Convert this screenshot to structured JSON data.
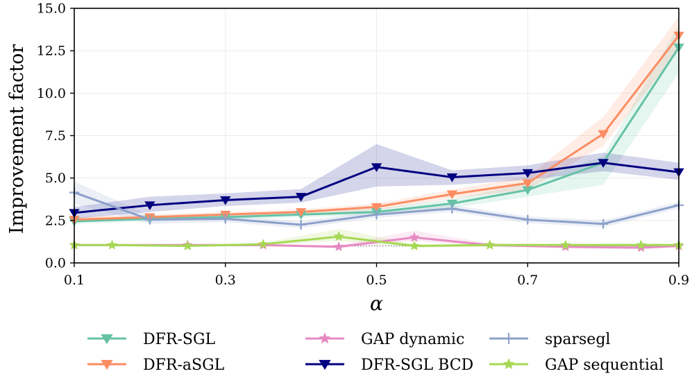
{
  "chart_data": {
    "type": "line",
    "title": "",
    "xlabel": "α",
    "ylabel": "Improvement factor",
    "xlim": [
      0.1,
      0.9
    ],
    "ylim": [
      0.0,
      15.0
    ],
    "xticks": [
      0.1,
      0.3,
      0.5,
      0.7,
      0.9
    ],
    "xtick_labels": [
      "0.1",
      "0.3",
      "0.5",
      "0.7",
      "0.9"
    ],
    "yticks": [
      0.0,
      2.5,
      5.0,
      7.5,
      10.0,
      12.5,
      15.0
    ],
    "ytick_labels": [
      "0.0",
      "2.5",
      "5.0",
      "7.5",
      "10.0",
      "12.5",
      "15.0"
    ],
    "grid": true,
    "reference_line": 1.0,
    "legend_position": "below plot, three columns",
    "series": [
      {
        "name": "DFR-SGL",
        "color": "#66c2a5",
        "marker": "triangle-down",
        "x": [
          0.1,
          0.2,
          0.3,
          0.4,
          0.5,
          0.6,
          0.7,
          0.8,
          0.9
        ],
        "values": [
          2.45,
          2.6,
          2.7,
          2.85,
          3.0,
          3.5,
          4.3,
          5.9,
          12.7
        ],
        "lower": [
          2.3,
          2.45,
          2.55,
          2.7,
          2.8,
          3.25,
          3.9,
          4.6,
          11.2
        ],
        "upper": [
          2.6,
          2.75,
          2.85,
          3.0,
          3.2,
          3.75,
          4.7,
          6.3,
          14.0
        ]
      },
      {
        "name": "DFR-aSGL",
        "color": "#fc8d62",
        "marker": "triangle-down",
        "x": [
          0.1,
          0.2,
          0.3,
          0.4,
          0.5,
          0.6,
          0.7,
          0.8,
          0.9
        ],
        "values": [
          2.55,
          2.7,
          2.85,
          3.0,
          3.3,
          4.05,
          4.7,
          7.6,
          13.4
        ],
        "lower": [
          2.4,
          2.55,
          2.7,
          2.85,
          3.1,
          3.8,
          4.3,
          6.9,
          12.5
        ],
        "upper": [
          2.7,
          2.85,
          3.0,
          3.15,
          3.5,
          4.3,
          5.1,
          8.6,
          14.5
        ]
      },
      {
        "name": "GAP dynamic",
        "color": "#e78ac3",
        "marker": "star",
        "x": [
          0.1,
          0.25,
          0.35,
          0.45,
          0.55,
          0.65,
          0.75,
          0.85,
          0.9
        ],
        "values": [
          1.05,
          1.05,
          1.05,
          0.95,
          1.5,
          1.05,
          0.95,
          0.9,
          1.0
        ],
        "lower": [
          1.0,
          1.0,
          1.0,
          0.85,
          1.3,
          0.95,
          0.85,
          0.8,
          0.9
        ],
        "upper": [
          1.1,
          1.1,
          1.1,
          1.05,
          1.9,
          1.15,
          1.05,
          1.0,
          1.1
        ]
      },
      {
        "name": "DFR-SGL BCD",
        "color": "#000080",
        "marker": "triangle-down",
        "x": [
          0.1,
          0.2,
          0.3,
          0.4,
          0.5,
          0.6,
          0.7,
          0.8,
          0.9
        ],
        "values": [
          2.95,
          3.4,
          3.7,
          3.9,
          5.65,
          5.05,
          5.3,
          5.9,
          5.35
        ],
        "lower": [
          2.6,
          3.0,
          3.35,
          3.55,
          4.5,
          4.6,
          4.9,
          5.4,
          4.9
        ],
        "upper": [
          3.3,
          3.9,
          4.1,
          4.35,
          7.0,
          5.45,
          5.75,
          6.5,
          5.9
        ]
      },
      {
        "name": "sparsegl",
        "color": "#8da0cb",
        "marker": "plus",
        "x": [
          0.1,
          0.2,
          0.3,
          0.4,
          0.5,
          0.6,
          0.7,
          0.8,
          0.9
        ],
        "values": [
          4.15,
          2.55,
          2.6,
          2.25,
          2.85,
          3.2,
          2.55,
          2.3,
          3.4
        ],
        "lower": [
          3.5,
          2.3,
          2.4,
          2.05,
          2.65,
          3.0,
          2.35,
          2.1,
          3.2
        ],
        "upper": [
          4.8,
          2.8,
          2.8,
          2.45,
          3.05,
          3.4,
          2.75,
          2.5,
          3.6
        ]
      },
      {
        "name": "GAP sequential",
        "color": "#a6d854",
        "marker": "star",
        "x": [
          0.1,
          0.15,
          0.25,
          0.35,
          0.45,
          0.55,
          0.65,
          0.75,
          0.85,
          0.9
        ],
        "values": [
          1.05,
          1.05,
          1.0,
          1.1,
          1.55,
          1.0,
          1.05,
          1.05,
          1.05,
          1.05
        ],
        "lower": [
          1.0,
          1.0,
          0.95,
          1.0,
          1.3,
          0.9,
          0.95,
          0.95,
          0.95,
          0.95
        ],
        "upper": [
          1.1,
          1.1,
          1.05,
          1.2,
          2.0,
          1.1,
          1.15,
          1.15,
          1.15,
          1.15
        ]
      }
    ]
  }
}
